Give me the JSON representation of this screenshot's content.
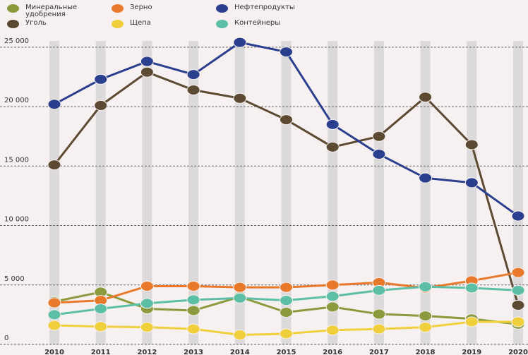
{
  "chart_data": {
    "type": "line",
    "categories": [
      "2010",
      "2011",
      "2012",
      "2013",
      "2014",
      "2015",
      "2016",
      "2017",
      "2018",
      "2019",
      "2020"
    ],
    "series": [
      {
        "name": "Минеральные удобрения",
        "color": "#8a9a3c",
        "values": [
          3600,
          4400,
          3000,
          2850,
          4000,
          2700,
          3150,
          2550,
          2400,
          2150,
          1700
        ]
      },
      {
        "name": "Уголь",
        "color": "#5c4a32",
        "values": [
          15100,
          20100,
          22900,
          21400,
          20700,
          18900,
          16600,
          17500,
          20800,
          16800,
          3300
        ]
      },
      {
        "name": "Зерно",
        "color": "#e8792a",
        "values": [
          3500,
          3700,
          4900,
          4900,
          4800,
          4800,
          5000,
          5200,
          4750,
          5350,
          6050
        ]
      },
      {
        "name": "Щепа",
        "color": "#f0cf3c",
        "values": [
          1600,
          1500,
          1450,
          1300,
          800,
          900,
          1200,
          1300,
          1450,
          1900,
          1900
        ]
      },
      {
        "name": "Нефтепродукты",
        "color": "#2b3f8f",
        "values": [
          20200,
          22300,
          23800,
          22700,
          25400,
          24600,
          18500,
          16000,
          14000,
          13600,
          10800
        ]
      },
      {
        "name": "Контейнеры",
        "color": "#5cbfa5",
        "values": [
          2500,
          3000,
          3450,
          3750,
          3900,
          3700,
          4050,
          4550,
          4850,
          4750,
          4550
        ]
      }
    ],
    "ylim": [
      0,
      26000
    ],
    "yticks": [
      0,
      {
        "value": 5000,
        "label": "5 000"
      },
      {
        "value": 10000,
        "label": "10 000"
      },
      {
        "value": 15000,
        "label": "15 000"
      },
      {
        "value": 20000,
        "label": "20 000"
      },
      {
        "value": 25000,
        "label": "25 000"
      }
    ],
    "grid": true
  }
}
